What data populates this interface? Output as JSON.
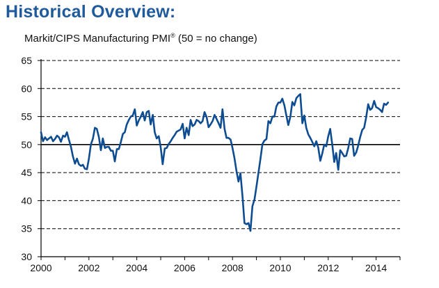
{
  "header": {
    "title": "Historical Overview:",
    "subtitle_prefix": "Markit/CIPS Manufacturing PMI",
    "subtitle_mark": "®",
    "subtitle_suffix": " (50 = no change)"
  },
  "chart_data": {
    "type": "line",
    "title": "Historical Overview:",
    "subtitle": "Markit/CIPS Manufacturing PMI® (50 = no change)",
    "xlabel": "",
    "ylabel": "",
    "xlim": [
      2000.0,
      2015.0
    ],
    "ylim": [
      30,
      65
    ],
    "x_ticks": [
      2000,
      2002,
      2004,
      2006,
      2008,
      2010,
      2012,
      2014
    ],
    "x_tick_labels": [
      "2000",
      "2002",
      "2004",
      "2006",
      "2008",
      "2010",
      "2012",
      "2014"
    ],
    "y_ticks": [
      30,
      35,
      40,
      45,
      50,
      55,
      60,
      65
    ],
    "y_tick_labels": [
      "30",
      "35",
      "40",
      "45",
      "50",
      "55",
      "60",
      "65"
    ],
    "grid": "horizontal dashed",
    "reference_line": 50,
    "line_color": "#0e4c92",
    "series": [
      {
        "x": [
          2000.0,
          2000.08,
          2000.17,
          2000.25,
          2000.33,
          2000.42,
          2000.5,
          2000.58,
          2000.67,
          2000.75,
          2000.83,
          2000.92,
          2001.0,
          2001.08,
          2001.17,
          2001.25,
          2001.33,
          2001.42,
          2001.5,
          2001.58,
          2001.67,
          2001.75,
          2001.83,
          2001.92,
          2002.0,
          2002.08,
          2002.17,
          2002.25,
          2002.33,
          2002.42,
          2002.5,
          2002.58,
          2002.67,
          2002.75,
          2002.83,
          2002.92,
          2003.0,
          2003.08,
          2003.17,
          2003.25,
          2003.33,
          2003.42,
          2003.5,
          2003.58,
          2003.67,
          2003.75,
          2003.83,
          2003.92,
          2004.0,
          2004.08,
          2004.17,
          2004.25,
          2004.33,
          2004.42,
          2004.5,
          2004.58,
          2004.67,
          2004.75,
          2004.83,
          2004.92,
          2005.0,
          2005.08,
          2005.17,
          2005.25,
          2005.33,
          2005.42,
          2005.5,
          2005.58,
          2005.67,
          2005.75,
          2005.83,
          2005.92,
          2006.0,
          2006.08,
          2006.17,
          2006.25,
          2006.33,
          2006.42,
          2006.5,
          2006.58,
          2006.67,
          2006.75,
          2006.83,
          2006.92,
          2007.0,
          2007.08,
          2007.17,
          2007.25,
          2007.33,
          2007.42,
          2007.5,
          2007.58,
          2007.67,
          2007.75,
          2007.83,
          2007.92,
          2008.0,
          2008.08,
          2008.17,
          2008.25,
          2008.33,
          2008.42,
          2008.5,
          2008.58,
          2008.67,
          2008.75,
          2008.83,
          2008.92,
          2009.0,
          2009.08,
          2009.17,
          2009.25,
          2009.33,
          2009.42,
          2009.5,
          2009.58,
          2009.67,
          2009.75,
          2009.83,
          2009.92,
          2010.0,
          2010.08,
          2010.17,
          2010.25,
          2010.33,
          2010.42,
          2010.5,
          2010.58,
          2010.67,
          2010.75,
          2010.83,
          2010.92,
          2011.0,
          2011.08,
          2011.17,
          2011.25,
          2011.33,
          2011.42,
          2011.5,
          2011.58,
          2011.67,
          2011.75,
          2011.83,
          2011.92,
          2012.0,
          2012.08,
          2012.17,
          2012.25,
          2012.33,
          2012.42,
          2012.5,
          2012.58,
          2012.67,
          2012.75,
          2012.83,
          2012.92,
          2013.0,
          2013.08,
          2013.17,
          2013.25,
          2013.33,
          2013.42,
          2013.5,
          2013.58,
          2013.67,
          2013.75,
          2013.83,
          2013.92,
          2014.0,
          2014.08,
          2014.17,
          2014.25,
          2014.33,
          2014.42,
          2014.5
        ],
        "values": [
          52.2,
          50.6,
          51.3,
          50.8,
          51.1,
          51.4,
          50.6,
          51.0,
          51.6,
          51.3,
          50.5,
          51.6,
          51.4,
          52.2,
          50.8,
          49.6,
          47.9,
          46.6,
          47.5,
          46.5,
          46.2,
          46.4,
          45.7,
          45.6,
          47.5,
          50.0,
          51.1,
          53.0,
          52.8,
          51.3,
          49.0,
          51.1,
          49.4,
          49.6,
          49.6,
          48.9,
          48.9,
          47.0,
          49.2,
          49.2,
          50.4,
          51.9,
          52.2,
          53.6,
          54.4,
          55.0,
          55.2,
          56.3,
          53.4,
          54.3,
          55.0,
          55.8,
          54.3,
          55.8,
          56.0,
          53.6,
          55.3,
          52.2,
          51.1,
          51.5,
          49.5,
          46.5,
          49.3,
          49.4,
          50.1,
          50.6,
          51.2,
          51.7,
          52.3,
          52.5,
          52.7,
          53.7,
          51.1,
          53.0,
          51.7,
          54.4,
          53.3,
          53.6,
          54.4,
          54.2,
          53.8,
          54.2,
          55.8,
          54.9,
          53.1,
          53.6,
          54.2,
          55.3,
          54.6,
          53.8,
          53.0,
          56.3,
          52.8,
          51.2,
          51.2,
          50.9,
          49.4,
          47.6,
          45.2,
          43.4,
          44.9,
          40.7,
          36.0,
          35.8,
          36.0,
          34.6,
          39.0,
          40.2,
          42.5,
          44.9,
          47.5,
          50.1,
          50.7,
          51.0,
          54.2,
          53.8,
          55.0,
          55.0,
          56.8,
          57.5,
          57.5,
          58.2,
          57.0,
          55.2,
          53.5,
          55.0,
          57.6,
          57.0,
          58.3,
          58.7,
          59.0,
          53.8,
          55.2,
          53.0,
          51.8,
          51.2,
          50.5,
          49.7,
          50.6,
          49.5,
          47.1,
          48.4,
          50.0,
          49.7,
          51.5,
          52.8,
          50.0,
          46.9,
          48.5,
          45.5,
          49.0,
          48.5,
          47.9,
          48.0,
          49.3,
          51.1,
          51.0,
          48.0,
          48.6,
          49.8,
          51.3,
          52.6,
          53.0,
          54.8,
          57.2,
          56.2,
          56.5,
          57.8,
          56.7,
          56.5,
          56.2,
          55.8,
          57.3,
          57.1,
          57.5
        ]
      }
    ]
  }
}
